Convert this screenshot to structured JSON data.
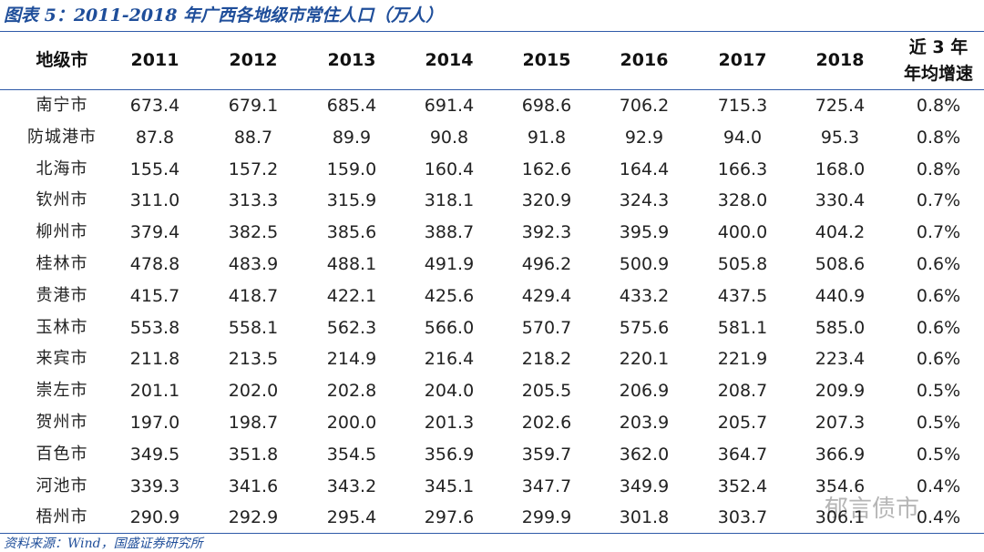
{
  "title": "图表 5：2011-2018 年广西各地级市常住人口（万人）",
  "table": {
    "columns": [
      "地级市",
      "2011",
      "2012",
      "2013",
      "2014",
      "2015",
      "2016",
      "2017",
      "2018",
      [
        "近 3 年",
        "年均增速"
      ]
    ],
    "rows": [
      [
        "南宁市",
        "673.4",
        "679.1",
        "685.4",
        "691.4",
        "698.6",
        "706.2",
        "715.3",
        "725.4",
        "0.8%"
      ],
      [
        "防城港市",
        "87.8",
        "88.7",
        "89.9",
        "90.8",
        "91.8",
        "92.9",
        "94.0",
        "95.3",
        "0.8%"
      ],
      [
        "北海市",
        "155.4",
        "157.2",
        "159.0",
        "160.4",
        "162.6",
        "164.4",
        "166.3",
        "168.0",
        "0.8%"
      ],
      [
        "钦州市",
        "311.0",
        "313.3",
        "315.9",
        "318.1",
        "320.9",
        "324.3",
        "328.0",
        "330.4",
        "0.7%"
      ],
      [
        "柳州市",
        "379.4",
        "382.5",
        "385.6",
        "388.7",
        "392.3",
        "395.9",
        "400.0",
        "404.2",
        "0.7%"
      ],
      [
        "桂林市",
        "478.8",
        "483.9",
        "488.1",
        "491.9",
        "496.2",
        "500.9",
        "505.8",
        "508.6",
        "0.6%"
      ],
      [
        "贵港市",
        "415.7",
        "418.7",
        "422.1",
        "425.6",
        "429.4",
        "433.2",
        "437.5",
        "440.9",
        "0.6%"
      ],
      [
        "玉林市",
        "553.8",
        "558.1",
        "562.3",
        "566.0",
        "570.7",
        "575.6",
        "581.1",
        "585.0",
        "0.6%"
      ],
      [
        "来宾市",
        "211.8",
        "213.5",
        "214.9",
        "216.4",
        "218.2",
        "220.1",
        "221.9",
        "223.4",
        "0.6%"
      ],
      [
        "崇左市",
        "201.1",
        "202.0",
        "202.8",
        "204.0",
        "205.5",
        "206.9",
        "208.7",
        "209.9",
        "0.5%"
      ],
      [
        "贺州市",
        "197.0",
        "198.7",
        "200.0",
        "201.3",
        "202.6",
        "203.9",
        "205.7",
        "207.3",
        "0.5%"
      ],
      [
        "百色市",
        "349.5",
        "351.8",
        "354.5",
        "356.9",
        "359.7",
        "362.0",
        "364.7",
        "366.9",
        "0.5%"
      ],
      [
        "河池市",
        "339.3",
        "341.6",
        "343.2",
        "345.1",
        "347.7",
        "349.9",
        "352.4",
        "354.6",
        "0.4%"
      ],
      [
        "梧州市",
        "290.9",
        "292.9",
        "295.4",
        "297.6",
        "299.9",
        "301.8",
        "303.7",
        "306.1",
        "0.4%"
      ]
    ]
  },
  "source": "资料来源：Wind，国盛证券研究所",
  "watermark": "郁言债市"
}
